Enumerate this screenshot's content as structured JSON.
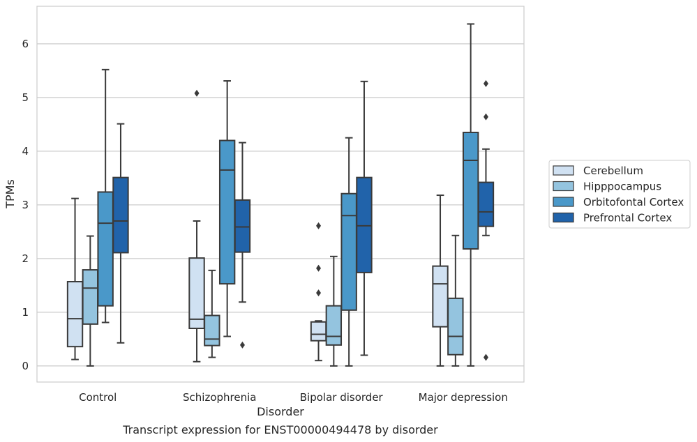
{
  "caption": "Transcript expression for ENST00000494478 by disorder",
  "chart_data": {
    "type": "boxplot",
    "title": "",
    "xlabel": "Disorder",
    "ylabel": "TPMs",
    "ylim": [
      -0.3,
      6.7
    ],
    "yticks": [
      0,
      1,
      2,
      3,
      4,
      5,
      6
    ],
    "grid": "horizontal",
    "legend_position": "right",
    "categories": [
      "Control",
      "Schizophrenia",
      "Bipolar disorder",
      "Major depression"
    ],
    "series": [
      {
        "name": "Cerebellum",
        "color": "#d0e1f2",
        "boxes": [
          {
            "whislo": 0.12,
            "q1": 0.36,
            "med": 0.88,
            "q3": 1.57,
            "whishi": 3.12,
            "fliers": []
          },
          {
            "whislo": 0.08,
            "q1": 0.7,
            "med": 0.87,
            "q3": 2.01,
            "whishi": 2.7,
            "fliers": [
              5.08
            ]
          },
          {
            "whislo": 0.1,
            "q1": 0.47,
            "med": 0.59,
            "q3": 0.82,
            "whishi": 0.84,
            "fliers": [
              1.36,
              1.82,
              2.61
            ]
          },
          {
            "whislo": 0.0,
            "q1": 0.73,
            "med": 1.53,
            "q3": 1.86,
            "whishi": 3.18,
            "fliers": []
          }
        ]
      },
      {
        "name": "Hipppocampus",
        "color": "#94c4df",
        "boxes": [
          {
            "whislo": 0.0,
            "q1": 0.78,
            "med": 1.45,
            "q3": 1.79,
            "whishi": 2.42,
            "fliers": []
          },
          {
            "whislo": 0.16,
            "q1": 0.38,
            "med": 0.5,
            "q3": 0.94,
            "whishi": 1.78,
            "fliers": []
          },
          {
            "whislo": 0.0,
            "q1": 0.39,
            "med": 0.55,
            "q3": 1.12,
            "whishi": 2.04,
            "fliers": []
          },
          {
            "whislo": 0.0,
            "q1": 0.21,
            "med": 0.55,
            "q3": 1.26,
            "whishi": 2.43,
            "fliers": []
          }
        ]
      },
      {
        "name": "Orbitofontal Cortex",
        "color": "#4a98c9",
        "boxes": [
          {
            "whislo": 0.81,
            "q1": 1.12,
            "med": 2.66,
            "q3": 3.24,
            "whishi": 5.52,
            "fliers": []
          },
          {
            "whislo": 0.55,
            "q1": 1.53,
            "med": 3.65,
            "q3": 4.2,
            "whishi": 5.31,
            "fliers": []
          },
          {
            "whislo": 0.0,
            "q1": 1.04,
            "med": 2.8,
            "q3": 3.21,
            "whishi": 4.25,
            "fliers": []
          },
          {
            "whislo": 0.0,
            "q1": 2.18,
            "med": 3.83,
            "q3": 4.35,
            "whishi": 6.37,
            "fliers": []
          }
        ]
      },
      {
        "name": "Prefrontal Cortex",
        "color": "#2163aa",
        "boxes": [
          {
            "whislo": 0.43,
            "q1": 2.11,
            "med": 2.7,
            "q3": 3.51,
            "whishi": 4.51,
            "fliers": []
          },
          {
            "whislo": 1.19,
            "q1": 2.12,
            "med": 2.59,
            "q3": 3.09,
            "whishi": 4.16,
            "fliers": [
              0.39
            ]
          },
          {
            "whislo": 0.2,
            "q1": 1.74,
            "med": 2.61,
            "q3": 3.51,
            "whishi": 5.3,
            "fliers": []
          },
          {
            "whislo": 2.43,
            "q1": 2.6,
            "med": 2.87,
            "q3": 3.42,
            "whishi": 4.04,
            "fliers": [
              0.16,
              4.64,
              5.26
            ]
          }
        ]
      }
    ]
  }
}
